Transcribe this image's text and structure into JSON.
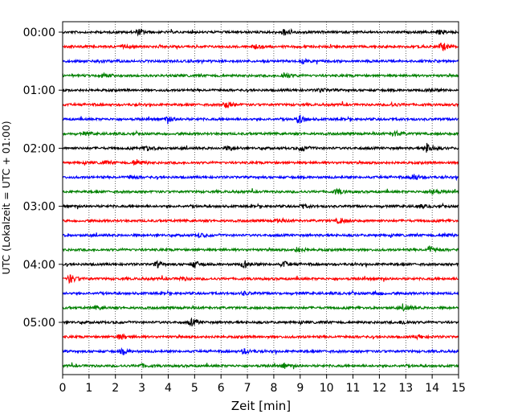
{
  "chart_data": {
    "type": "line",
    "title": "",
    "xlabel": "Zeit  [min]",
    "ylabel": "UTC (Lokalzeit = UTC + 01:00)",
    "xlim": [
      0,
      15
    ],
    "x_ticks": [
      "0",
      "1",
      "2",
      "3",
      "4",
      "5",
      "6",
      "7",
      "8",
      "9",
      "10",
      "11",
      "12",
      "13",
      "14",
      "15"
    ],
    "y_ticks": [
      "00:00",
      "01:00",
      "02:00",
      "03:00",
      "04:00",
      "05:00"
    ],
    "y_tick_rows": [
      0,
      4,
      8,
      12,
      16,
      20
    ],
    "grid": "vertical-dotted",
    "trace_colors": [
      "#000000",
      "#ff0000",
      "#0000ff",
      "#008000"
    ],
    "row_count": 24,
    "row_minutes": 15,
    "series": [
      {
        "row": 0,
        "color": "black",
        "events": [
          [
            2.9,
            3
          ],
          [
            8.4,
            4
          ],
          [
            14.3,
            2
          ]
        ]
      },
      {
        "row": 1,
        "color": "red",
        "events": [
          [
            2.3,
            2
          ],
          [
            14.4,
            5
          ],
          [
            7.3,
            2
          ]
        ]
      },
      {
        "row": 2,
        "color": "blue",
        "events": [
          [
            9.1,
            2
          ],
          [
            1.4,
            2
          ]
        ]
      },
      {
        "row": 3,
        "color": "green",
        "events": [
          [
            8.4,
            4
          ],
          [
            1.6,
            2
          ]
        ]
      },
      {
        "row": 4,
        "color": "black",
        "events": [
          [
            13.9,
            2
          ],
          [
            9.8,
            2
          ]
        ]
      },
      {
        "row": 5,
        "color": "red",
        "events": [
          [
            6.2,
            4
          ],
          [
            12.5,
            2
          ]
        ]
      },
      {
        "row": 6,
        "color": "blue",
        "events": [
          [
            4.0,
            3
          ],
          [
            9.0,
            5
          ]
        ]
      },
      {
        "row": 7,
        "color": "green",
        "events": [
          [
            12.6,
            3
          ],
          [
            0.9,
            2
          ]
        ]
      },
      {
        "row": 8,
        "color": "black",
        "events": [
          [
            3.2,
            3
          ],
          [
            6.3,
            3
          ],
          [
            9.1,
            3
          ],
          [
            13.8,
            6
          ]
        ]
      },
      {
        "row": 9,
        "color": "red",
        "events": [
          [
            2.8,
            4
          ],
          [
            1.6,
            2
          ]
        ]
      },
      {
        "row": 10,
        "color": "blue",
        "events": [
          [
            13.3,
            4
          ],
          [
            2.6,
            2
          ]
        ]
      },
      {
        "row": 11,
        "color": "green",
        "events": [
          [
            10.4,
            3
          ],
          [
            14.0,
            4
          ]
        ]
      },
      {
        "row": 12,
        "color": "black",
        "events": [
          [
            9.1,
            2
          ],
          [
            13.5,
            2
          ]
        ]
      },
      {
        "row": 13,
        "color": "red",
        "events": [
          [
            8.2,
            2
          ],
          [
            10.5,
            3
          ]
        ]
      },
      {
        "row": 14,
        "color": "blue",
        "events": [
          [
            5.2,
            2
          ],
          [
            14.5,
            2
          ]
        ]
      },
      {
        "row": 15,
        "color": "green",
        "events": [
          [
            8.9,
            3
          ],
          [
            13.9,
            4
          ]
        ]
      },
      {
        "row": 16,
        "color": "black",
        "events": [
          [
            3.6,
            3
          ],
          [
            5.0,
            4
          ],
          [
            6.9,
            4
          ],
          [
            8.4,
            3
          ]
        ]
      },
      {
        "row": 17,
        "color": "red",
        "events": [
          [
            0.3,
            5
          ],
          [
            4.5,
            2
          ]
        ]
      },
      {
        "row": 18,
        "color": "blue",
        "events": [
          [
            6.9,
            2
          ],
          [
            11.9,
            2
          ]
        ]
      },
      {
        "row": 19,
        "color": "green",
        "events": [
          [
            13.0,
            4
          ],
          [
            1.3,
            2
          ]
        ]
      },
      {
        "row": 20,
        "color": "black",
        "events": [
          [
            4.9,
            4
          ],
          [
            12.9,
            2
          ]
        ]
      },
      {
        "row": 21,
        "color": "red",
        "events": [
          [
            2.2,
            3
          ],
          [
            13.5,
            2
          ]
        ]
      },
      {
        "row": 22,
        "color": "blue",
        "events": [
          [
            2.3,
            3
          ],
          [
            6.9,
            3
          ]
        ]
      },
      {
        "row": 23,
        "color": "green",
        "events": [
          [
            3.0,
            2
          ],
          [
            8.4,
            3
          ]
        ]
      }
    ]
  }
}
